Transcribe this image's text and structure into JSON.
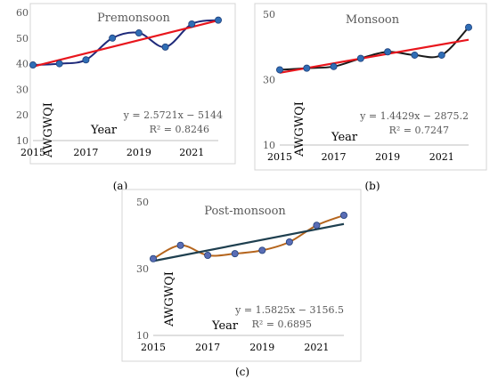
{
  "chart_data": [
    {
      "type": "line",
      "title": "Premonsoon",
      "panel_label": "(a)",
      "xlabel": "Year",
      "ylabel": "AWGWQI",
      "x_ticks": [
        "2015",
        "2017",
        "2019",
        "2021"
      ],
      "y_ticks": [
        "10",
        "20",
        "30",
        "40",
        "50",
        "60"
      ],
      "xlim": [
        2015,
        2022
      ],
      "ylim": [
        10,
        60
      ],
      "grid": false,
      "x": [
        2015,
        2016,
        2017,
        2018,
        2019,
        2020,
        2021,
        2022
      ],
      "series": [
        {
          "values": [
            39.5,
            40,
            41.5,
            50,
            52,
            46.5,
            55.5,
            57
          ],
          "color": "#1f2a7a"
        },
        {
          "values": [
            38.9,
            41.4,
            44.0,
            46.6,
            49.1,
            51.7,
            54.3,
            56.9
          ],
          "color": "#e8161d"
        }
      ],
      "equation": "y = 2.5721x − 5144",
      "r2": "R² = 0.8246",
      "marker_color": "#2f6db5"
    },
    {
      "type": "line",
      "title": "Monsoon",
      "panel_label": "(b)",
      "xlabel": "Year",
      "ylabel": "AWGWQI",
      "x_ticks": [
        "2015",
        "2017",
        "2019",
        "2021"
      ],
      "y_ticks": [
        "10",
        "30",
        "50"
      ],
      "xlim": [
        2015,
        2022
      ],
      "ylim": [
        10,
        50
      ],
      "grid": false,
      "x": [
        2015,
        2016,
        2017,
        2018,
        2019,
        2020,
        2021,
        2022
      ],
      "series": [
        {
          "values": [
            33,
            33.5,
            34,
            36.5,
            38.5,
            37.5,
            37.5,
            46
          ],
          "color": "#1a1a1a"
        },
        {
          "values": [
            32.1,
            33.5,
            35.0,
            36.4,
            37.9,
            39.3,
            40.7,
            42.2
          ],
          "color": "#e8161d"
        }
      ],
      "equation": "y = 1.4429x − 2875.2",
      "r2": "R² = 0.7247",
      "marker_color": "#2f6db5"
    },
    {
      "type": "line",
      "title": "Post-monsoon",
      "panel_label": "(c)",
      "xlabel": "Year",
      "ylabel": "AWGWQI",
      "x_ticks": [
        "2015",
        "2017",
        "2019",
        "2021"
      ],
      "y_ticks": [
        "10",
        "30",
        "50"
      ],
      "xlim": [
        2015,
        2022
      ],
      "ylim": [
        10,
        50
      ],
      "grid": false,
      "x": [
        2015,
        2016,
        2017,
        2018,
        2019,
        2020,
        2021,
        2022
      ],
      "series": [
        {
          "values": [
            33,
            37,
            34,
            34.5,
            35.5,
            38,
            43,
            46
          ],
          "color": "#b5651d"
        },
        {
          "values": [
            32.3,
            33.9,
            35.5,
            37.0,
            38.6,
            40.2,
            41.8,
            43.4
          ],
          "color": "#1e3f4f"
        }
      ],
      "equation": "y = 1.5825x − 3156.5",
      "r2": "R² = 0.6895",
      "marker_color": "#5a6db5"
    }
  ]
}
